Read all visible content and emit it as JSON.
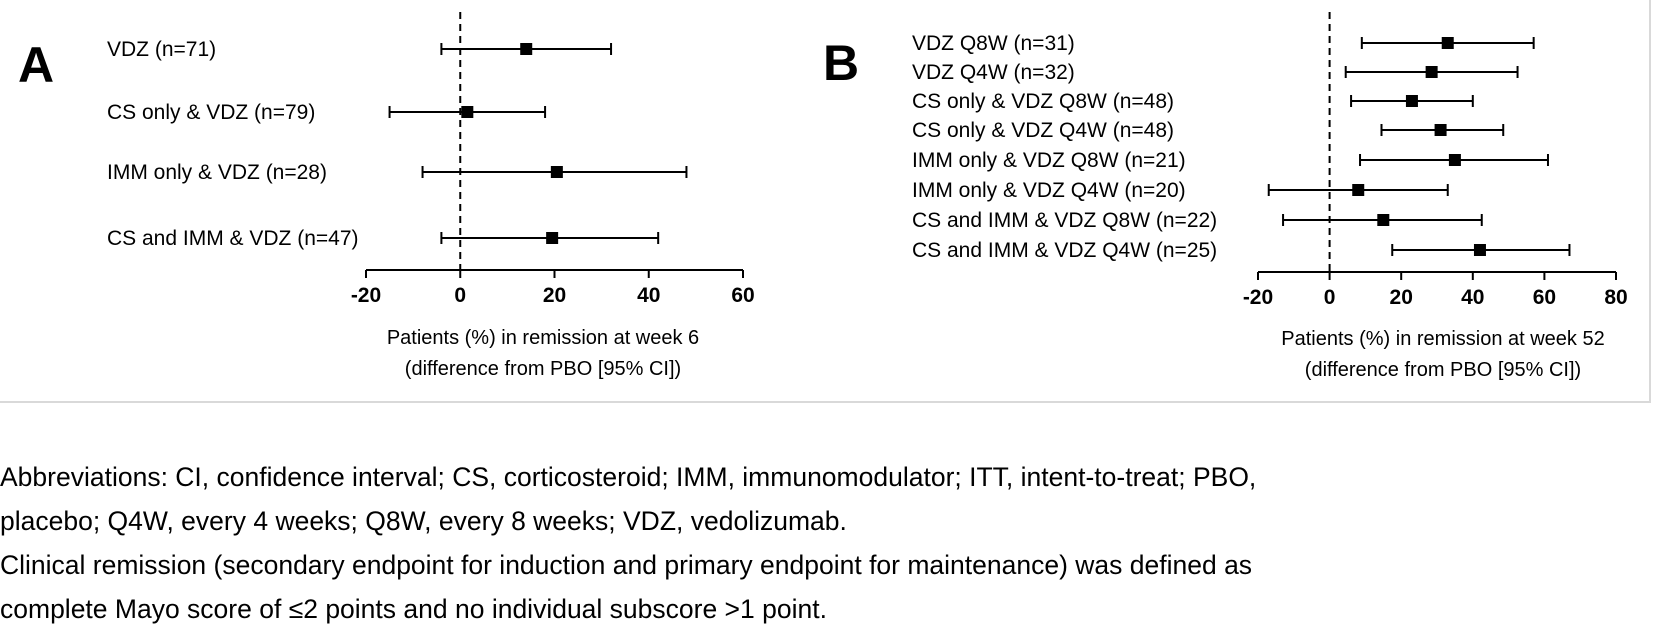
{
  "chart_data": [
    {
      "type": "forest",
      "panel_label": "A",
      "xlim": [
        -20,
        60
      ],
      "ticks": [
        "-20",
        "0",
        "20",
        "40",
        "60"
      ],
      "xlabel_lines": [
        "Patients (%) in remission at week 6",
        "(difference from PBO [95% CI])"
      ],
      "reference_line": 0,
      "rows": [
        {
          "label": "VDZ (n=71)",
          "estimate": 14,
          "ci": [
            -4,
            32
          ]
        },
        {
          "label": "CS only & VDZ (n=79)",
          "estimate": 1.5,
          "ci": [
            -15,
            18
          ]
        },
        {
          "label": "IMM only & VDZ (n=28)",
          "estimate": 20.5,
          "ci": [
            -8,
            48
          ]
        },
        {
          "label": "CS and IMM & VDZ (n=47)",
          "estimate": 19.5,
          "ci": [
            -4,
            42
          ]
        }
      ]
    },
    {
      "type": "forest",
      "panel_label": "B",
      "xlim": [
        -20,
        80
      ],
      "ticks": [
        "-20",
        "0",
        "20",
        "40",
        "60",
        "80"
      ],
      "xlabel_lines": [
        "Patients (%) in remission at week 52",
        "(difference from PBO [95% CI])"
      ],
      "reference_line": 0,
      "rows": [
        {
          "label": "VDZ Q8W (n=31)",
          "estimate": 33,
          "ci": [
            9,
            57
          ]
        },
        {
          "label": "VDZ Q4W (n=32)",
          "estimate": 28.5,
          "ci": [
            4.5,
            52.5
          ]
        },
        {
          "label": "CS only & VDZ Q8W (n=48)",
          "estimate": 23,
          "ci": [
            6,
            40
          ]
        },
        {
          "label": "CS only & VDZ Q4W (n=48)",
          "estimate": 31,
          "ci": [
            14.5,
            48.5
          ]
        },
        {
          "label": "IMM only & VDZ Q8W (n=21)",
          "estimate": 35,
          "ci": [
            8.5,
            61
          ]
        },
        {
          "label": "IMM only & VDZ Q4W (n=20)",
          "estimate": 8,
          "ci": [
            -17,
            33
          ]
        },
        {
          "label": "CS and IMM & VDZ Q8W (n=22)",
          "estimate": 15,
          "ci": [
            -13,
            42.5
          ]
        },
        {
          "label": "CS and IMM & VDZ Q4W (n=25)",
          "estimate": 42,
          "ci": [
            17.5,
            67
          ]
        }
      ]
    }
  ],
  "footnotes": {
    "line1": "Abbreviations: CI, confidence interval; CS, corticosteroid; IMM, immunomodulator; ITT, intent-to-treat; PBO,",
    "line2": "placebo; Q4W, every 4 weeks; Q8W, every 8 weeks; VDZ, vedolizumab.",
    "line3": "Clinical remission (secondary endpoint for induction and primary endpoint for maintenance) was defined as",
    "line4": "complete Mayo score of ≤2 points and no individual subscore >1 point."
  }
}
